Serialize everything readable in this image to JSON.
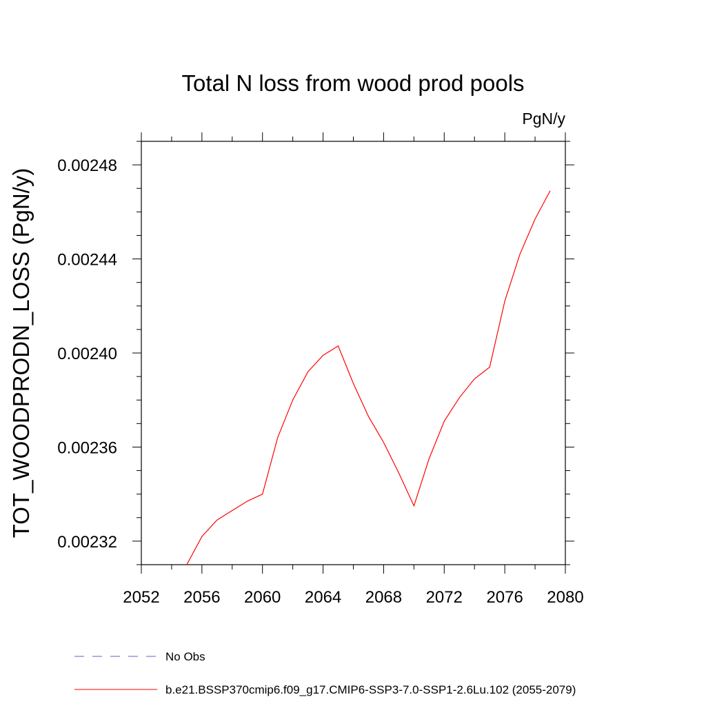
{
  "chart_data": {
    "type": "line",
    "title": "Total N loss from wood prod pools",
    "units": "PgN/y",
    "ylabel": "TOT_WOODPRODN_LOSS  (PgN/y)",
    "xlabel": "",
    "xlim": [
      2052,
      2080
    ],
    "ylim": [
      0.00231,
      0.00249
    ],
    "x_ticks": [
      2052,
      2056,
      2060,
      2064,
      2068,
      2072,
      2076,
      2080
    ],
    "y_ticks": [
      0.00232,
      0.00236,
      0.0024,
      0.00244,
      0.00248
    ],
    "x_tick_labels": [
      "2052",
      "2056",
      "2060",
      "2064",
      "2068",
      "2072",
      "2076",
      "2080"
    ],
    "y_tick_labels": [
      "0.00232",
      "0.00236",
      "0.00240",
      "0.00244",
      "0.00248"
    ],
    "grid": false,
    "legend_placement": "bottom",
    "series": [
      {
        "name": "b.e21.BSSP370cmip6.f09_g17.CMIP6-SSP3-7.0-SSP1-2.6Lu.102 (2055-2079)",
        "color": "#ff0000",
        "style": "solid",
        "x": [
          2055,
          2056,
          2057,
          2058,
          2059,
          2060,
          2061,
          2062,
          2063,
          2064,
          2065,
          2066,
          2067,
          2068,
          2069,
          2070,
          2071,
          2072,
          2073,
          2074,
          2075,
          2076,
          2077,
          2078,
          2079
        ],
        "y": [
          0.00231,
          0.002322,
          0.002329,
          0.002333,
          0.002337,
          0.00234,
          0.002364,
          0.00238,
          0.002392,
          0.002399,
          0.002403,
          0.002387,
          0.002373,
          0.002362,
          0.002349,
          0.002335,
          0.002355,
          0.002371,
          0.002381,
          0.002389,
          0.002394,
          0.002422,
          0.002442,
          0.002457,
          0.002469
        ]
      }
    ],
    "legend": [
      {
        "label": "No Obs",
        "color": "#6a5acd",
        "style": "dashed"
      },
      {
        "label": "b.e21.BSSP370cmip6.f09_g17.CMIP6-SSP3-7.0-SSP1-2.6Lu.102 (2055-2079)",
        "color": "#ff0000",
        "style": "solid"
      }
    ]
  }
}
